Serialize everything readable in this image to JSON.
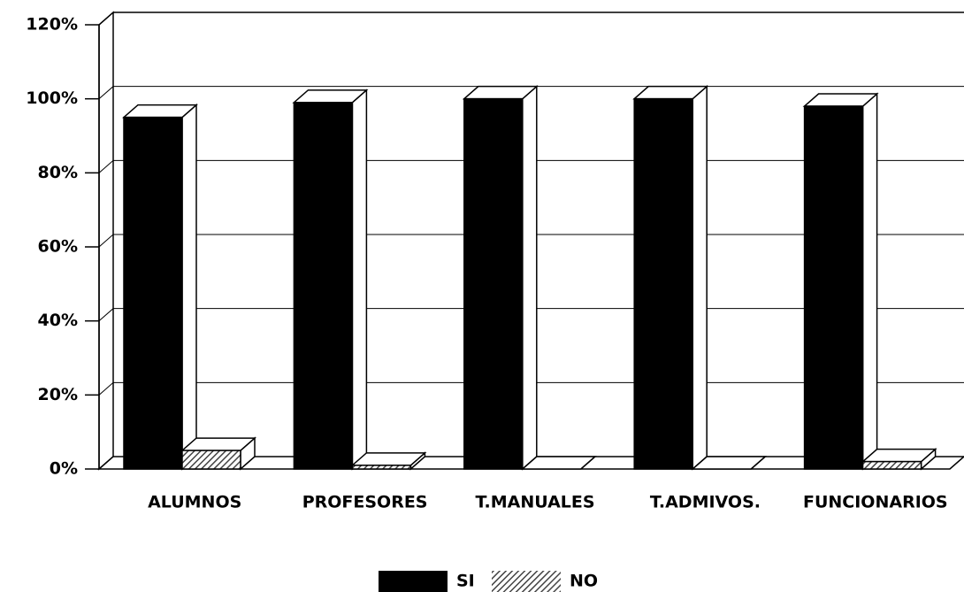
{
  "chart_data": {
    "type": "bar3d",
    "categories": [
      "ALUMNOS",
      "PROFESORES",
      "T.MANUALES",
      "T.ADMIVOS.",
      "FUNCIONARIOS"
    ],
    "series": [
      {
        "name": "SI",
        "color": "#000000",
        "values": [
          95,
          99,
          100,
          100,
          98
        ]
      },
      {
        "name": "NO",
        "color": "#444444",
        "values": [
          5,
          1,
          0,
          0,
          2
        ]
      }
    ],
    "ylim": [
      0,
      120
    ],
    "yticks": [
      {
        "value": 0,
        "label": "0%"
      },
      {
        "value": 20,
        "label": "20%"
      },
      {
        "value": 40,
        "label": "40%"
      },
      {
        "value": 60,
        "label": "60%"
      },
      {
        "value": 80,
        "label": "80%"
      },
      {
        "value": 100,
        "label": "100%"
      },
      {
        "value": 120,
        "label": "120%"
      }
    ],
    "grid": true
  }
}
